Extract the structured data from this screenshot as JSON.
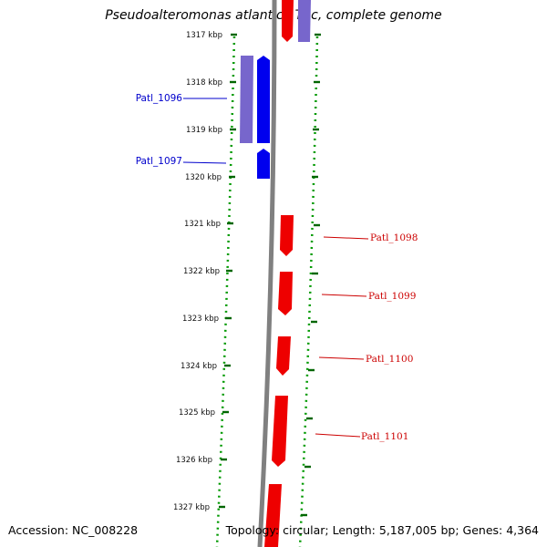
{
  "title": "Pseudoalteromonas atlantica T6c, complete genome",
  "accession": "Accession: NC_008228",
  "summary": "Topology: circular; Length: 5,187,005 bp; Genes: 4,364",
  "ticks": [
    {
      "label": "1317 kbp"
    },
    {
      "label": "1318 kbp"
    },
    {
      "label": "1319 kbp"
    },
    {
      "label": "1320 kbp"
    },
    {
      "label": "1321 kbp"
    },
    {
      "label": "1322 kbp"
    },
    {
      "label": "1323 kbp"
    },
    {
      "label": "1324 kbp"
    },
    {
      "label": "1325 kbp"
    },
    {
      "label": "1326 kbp"
    },
    {
      "label": "1327 kbp"
    }
  ],
  "genes": [
    {
      "name": "Patl_1096",
      "strand": "reverse",
      "color": "#0000ee"
    },
    {
      "name": "Patl_1097",
      "strand": "reverse",
      "color": "#0000ee"
    },
    {
      "name": "Patl_1098",
      "strand": "forward",
      "color": "#ee0000"
    },
    {
      "name": "Patl_1099",
      "strand": "forward",
      "color": "#ee0000"
    },
    {
      "name": "Patl_1100",
      "strand": "forward",
      "color": "#ee0000"
    },
    {
      "name": "Patl_1101",
      "strand": "forward",
      "color": "#ee0000"
    }
  ],
  "colors": {
    "reverse_gene": "#0000ee",
    "forward_gene": "#ee0000",
    "reverse_feature": "#7766cc",
    "backbone": "#808080",
    "tick": "#006600",
    "dotted_ring": "#009900"
  }
}
